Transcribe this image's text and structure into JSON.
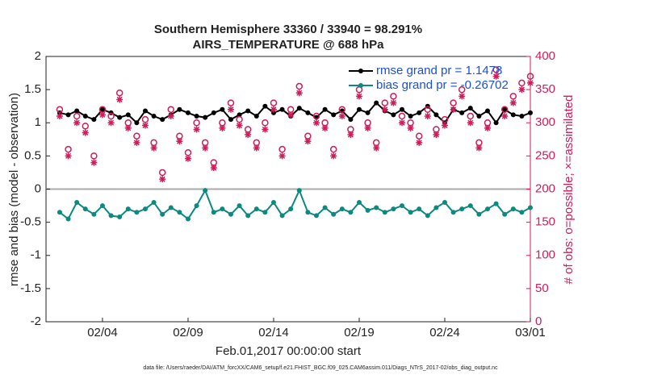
{
  "chart_data": {
    "type": "line",
    "title": "Southern Hemisphere 33360 / 33940 = 98.291%",
    "subtitle": "AIRS_TEMPERATURE @ 688 hPa",
    "x_label": "Feb.01,2017 00:00:00 start",
    "y_label": "rmse and bias (model - observation)",
    "y2_label": "# of obs: o=possible; ×=assimilated",
    "footnote": "data file: /Users/raeder/DAI/ATM_forcXX/CAM6_setup/f.e21.FHIST_BGC.f09_025.CAM6assim.011/Diags_NTrS_2017-02/obs_diag_output.nc",
    "legend_labels": [
      "rmse grand pr = 1.1478",
      "bias grand pr = -0.26702"
    ],
    "x": [
      0.5,
      1,
      1.5,
      2,
      2.5,
      3,
      3.5,
      4,
      4.5,
      5,
      5.5,
      6,
      6.5,
      7,
      7.5,
      8,
      8.5,
      9,
      9.5,
      10,
      10.5,
      11,
      11.5,
      12,
      12.5,
      13,
      13.5,
      14,
      14.5,
      15,
      15.5,
      16,
      16.5,
      17,
      17.5,
      18,
      18.5,
      19,
      19.5,
      20,
      20.5,
      21,
      21.5,
      22,
      22.5,
      23,
      23.5,
      24,
      24.5,
      25,
      25.5,
      26,
      26.5,
      27,
      27.5,
      28
    ],
    "xlim": [
      -0.3,
      28
    ],
    "xticks": [
      {
        "value": 3,
        "label": "02/04"
      },
      {
        "value": 8,
        "label": "02/09"
      },
      {
        "value": 13,
        "label": "02/14"
      },
      {
        "value": 18,
        "label": "02/19"
      },
      {
        "value": 23,
        "label": "02/24"
      },
      {
        "value": 28,
        "label": "03/01"
      }
    ],
    "ylim": [
      -2,
      2
    ],
    "yticks": [
      -2,
      -1.5,
      -1,
      -0.5,
      0,
      0.5,
      1,
      1.5,
      2
    ],
    "y2lim": [
      0,
      400
    ],
    "y2ticks": [
      0,
      50,
      100,
      150,
      200,
      250,
      300,
      350,
      400
    ],
    "series": [
      {
        "name": "rmse",
        "color": "#000000",
        "marker": "dot",
        "values": [
          1.15,
          1.12,
          1.18,
          1.1,
          1.05,
          1.2,
          1.15,
          1.08,
          1.12,
          1.0,
          1.18,
          1.1,
          1.05,
          1.12,
          1.2,
          1.15,
          1.1,
          1.08,
          1.15,
          1.2,
          1.05,
          1.12,
          1.18,
          1.1,
          1.25,
          1.15,
          1.2,
          1.1,
          1.22,
          1.15,
          1.08,
          1.2,
          1.12,
          1.18,
          1.05,
          1.2,
          1.15,
          1.3,
          1.18,
          1.12,
          1.2,
          1.1,
          1.15,
          1.25,
          1.12,
          1.0,
          1.2,
          1.15,
          1.22,
          1.1,
          1.18,
          1.0,
          1.2,
          1.12,
          1.1,
          1.15
        ]
      },
      {
        "name": "bias",
        "color": "#0a8a80",
        "marker": "dot",
        "values": [
          -0.35,
          -0.45,
          -0.2,
          -0.3,
          -0.38,
          -0.25,
          -0.4,
          -0.42,
          -0.3,
          -0.35,
          -0.3,
          -0.2,
          -0.38,
          -0.28,
          -0.35,
          -0.45,
          -0.25,
          -0.02,
          -0.35,
          -0.3,
          -0.38,
          -0.25,
          -0.4,
          -0.3,
          -0.35,
          -0.2,
          -0.4,
          -0.3,
          -0.02,
          -0.35,
          -0.4,
          -0.28,
          -0.38,
          -0.3,
          -0.35,
          -0.2,
          -0.32,
          -0.28,
          -0.35,
          -0.3,
          -0.25,
          -0.35,
          -0.3,
          -0.4,
          -0.28,
          -0.2,
          -0.35,
          -0.3,
          -0.25,
          -0.38,
          -0.3,
          -0.22,
          -0.38,
          -0.3,
          -0.35,
          -0.28
        ]
      },
      {
        "color": "#d01c5b",
        "marker": "circle",
        "axis": "y2",
        "values": [
          320,
          260,
          310,
          295,
          250,
          320,
          310,
          345,
          300,
          280,
          305,
          270,
          225,
          320,
          280,
          255,
          300,
          270,
          240,
          300,
          330,
          305,
          290,
          270,
          300,
          330,
          260,
          320,
          355,
          280,
          310,
          300,
          260,
          320,
          290,
          350,
          300,
          270,
          330,
          340,
          310,
          300,
          280,
          320,
          290,
          305,
          330,
          350,
          310,
          270,
          300,
          380,
          320,
          340,
          360,
          370
        ]
      },
      {
        "color": "#d01c5b",
        "marker": "star",
        "axis": "y2",
        "values": [
          310,
          250,
          300,
          285,
          240,
          312,
          300,
          335,
          292,
          270,
          296,
          262,
          215,
          310,
          272,
          246,
          290,
          262,
          232,
          292,
          320,
          296,
          282,
          262,
          290,
          320,
          250,
          312,
          345,
          272,
          300,
          292,
          250,
          310,
          282,
          340,
          292,
          262,
          320,
          330,
          300,
          292,
          270,
          310,
          282,
          296,
          320,
          340,
          300,
          262,
          292,
          370,
          310,
          330,
          350,
          360
        ]
      }
    ]
  }
}
